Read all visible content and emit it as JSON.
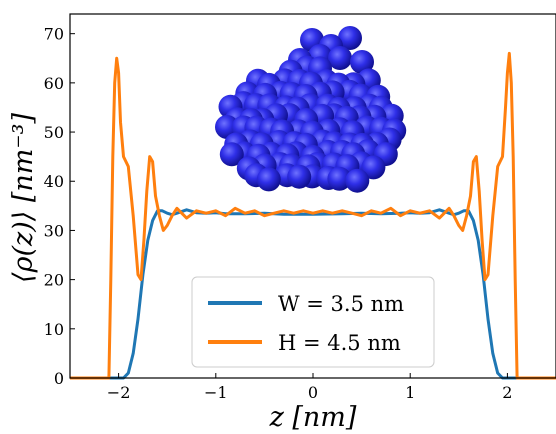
{
  "chart_data": {
    "type": "line",
    "title": "",
    "xlabel": "z [nm]",
    "ylabel": "⟨ρ(z)⟩ [nm⁻³]",
    "xlim": [
      -2.5,
      2.5
    ],
    "ylim": [
      0,
      74
    ],
    "xticks": [
      -2,
      -1,
      0,
      1,
      2
    ],
    "yticks": [
      0,
      10,
      20,
      30,
      40,
      50,
      60,
      70
    ],
    "xtick_labels": [
      "−2",
      "−1",
      "0",
      "1",
      "2"
    ],
    "ytick_labels": [
      "0",
      "10",
      "20",
      "30",
      "40",
      "50",
      "60",
      "70"
    ],
    "grid": false,
    "legend_position": "bottom-center",
    "series": [
      {
        "name": "W = 3.5 nm",
        "color": "#1f77b4",
        "x": [
          -2.5,
          -1.95,
          -1.9,
          -1.85,
          -1.8,
          -1.75,
          -1.7,
          -1.65,
          -1.6,
          -1.55,
          -1.5,
          -1.45,
          -1.4,
          -1.3,
          -1.2,
          -1.1,
          -1.0,
          -0.9,
          -0.7,
          -0.5,
          -0.3,
          0.0,
          0.3,
          0.5,
          0.7,
          0.9,
          1.0,
          1.1,
          1.2,
          1.3,
          1.4,
          1.45,
          1.5,
          1.55,
          1.6,
          1.65,
          1.7,
          1.75,
          1.8,
          1.85,
          1.9,
          1.95,
          2.5
        ],
        "y": [
          0,
          0,
          1,
          5,
          12,
          21,
          28,
          32,
          34,
          34,
          33.5,
          33.2,
          33.5,
          34.2,
          33.6,
          33.5,
          33.6,
          33.4,
          33.4,
          33.5,
          33.3,
          33.3,
          33.4,
          33.5,
          33.4,
          33.5,
          33.6,
          33.5,
          33.6,
          34.2,
          33.5,
          33.2,
          33.5,
          34,
          34,
          32,
          28,
          21,
          12,
          5,
          1,
          0,
          0
        ]
      },
      {
        "name": "H = 4.5 nm",
        "color": "#ff7f0e",
        "x": [
          -2.5,
          -2.1,
          -2.08,
          -2.06,
          -2.04,
          -2.02,
          -2.0,
          -1.98,
          -1.95,
          -1.9,
          -1.85,
          -1.8,
          -1.77,
          -1.74,
          -1.71,
          -1.68,
          -1.65,
          -1.62,
          -1.58,
          -1.54,
          -1.5,
          -1.45,
          -1.4,
          -1.3,
          -1.2,
          -1.1,
          -1.0,
          -0.9,
          -0.8,
          -0.7,
          -0.6,
          -0.5,
          -0.4,
          -0.3,
          -0.2,
          -0.1,
          0.0,
          0.1,
          0.2,
          0.3,
          0.4,
          0.5,
          0.6,
          0.7,
          0.8,
          0.9,
          1.0,
          1.1,
          1.2,
          1.3,
          1.4,
          1.45,
          1.5,
          1.54,
          1.58,
          1.62,
          1.65,
          1.68,
          1.71,
          1.74,
          1.77,
          1.8,
          1.85,
          1.9,
          1.95,
          1.98,
          2.0,
          2.02,
          2.04,
          2.06,
          2.08,
          2.1,
          2.5
        ],
        "y": [
          0,
          0,
          20,
          45,
          60,
          65,
          62,
          52,
          45,
          43,
          33,
          21,
          20,
          28,
          38,
          45,
          44,
          37,
          33,
          30,
          31,
          33,
          34.5,
          32.5,
          34,
          33.5,
          34,
          33,
          34.5,
          33.5,
          34,
          33,
          33.5,
          34,
          33.5,
          34,
          33.5,
          34,
          33.5,
          34,
          33.5,
          33,
          34,
          33.5,
          34.5,
          33,
          34,
          33.5,
          34,
          32.5,
          34.5,
          33,
          31,
          30,
          33,
          37,
          44,
          45,
          38,
          28,
          20,
          21,
          33,
          43,
          45,
          55,
          62,
          66,
          60,
          45,
          20,
          0,
          0
        ]
      }
    ]
  }
}
